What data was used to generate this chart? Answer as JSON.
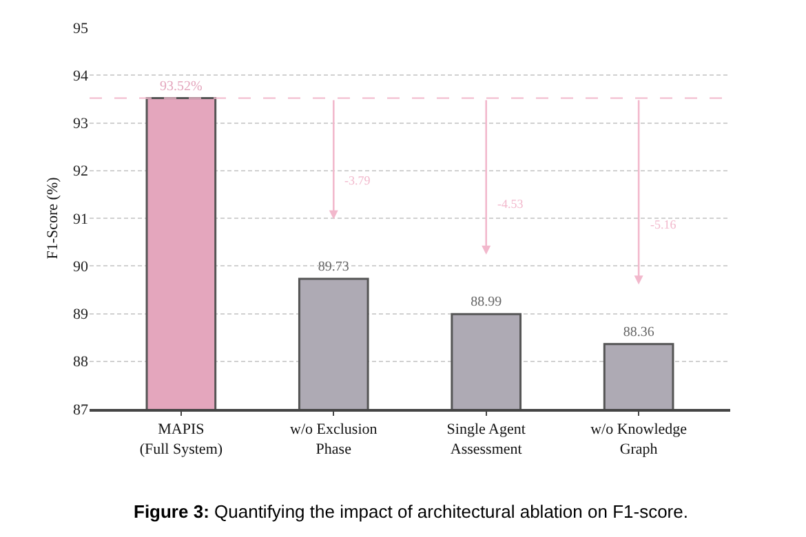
{
  "chart_data": {
    "type": "bar",
    "ylabel": "F1-Score (%)",
    "categories": [
      "MAPIS\n(Full System)",
      "w/o Exclusion\nPhase",
      "Single Agent\nAssessment",
      "w/o Knowledge\nGraph"
    ],
    "values": [
      93.52,
      89.73,
      88.99,
      88.36
    ],
    "colors": [
      "#e4a6bd",
      "#aeaab4",
      "#aeaab4",
      "#aeaab4"
    ],
    "value_labels": [
      "93.52%",
      "89.73",
      "88.99",
      "88.36"
    ],
    "ylim": [
      87,
      95
    ],
    "yticks": [
      87,
      88,
      89,
      90,
      91,
      92,
      93,
      94,
      95
    ],
    "grid": "y",
    "ref_lines": [
      {
        "axis": "y",
        "value": 93.52,
        "color": "#f2b8cc",
        "line_style": "dashed"
      }
    ],
    "annotations": [
      "-3.79",
      "-4.53",
      "-5.16",
      "Figure 3: Quantifying the impact of architectural ablation on F1-score."
    ]
  }
}
